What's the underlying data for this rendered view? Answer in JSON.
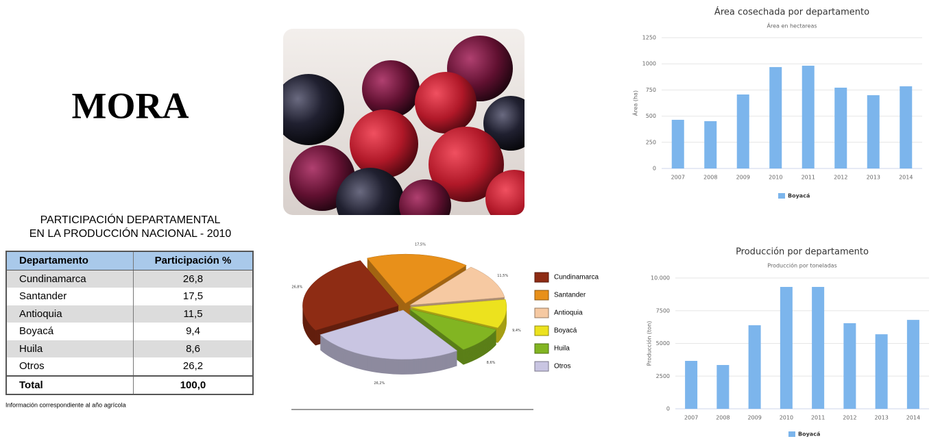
{
  "title": "MORA",
  "table": {
    "title_lines": [
      "PARTICIPACIÓN DEPARTAMENTAL",
      "EN LA PRODUCCIÓN NACIONAL - 2010"
    ],
    "header": [
      "Departamento",
      "Participación %"
    ],
    "rows": [
      [
        "Cundinamarca",
        "26,8"
      ],
      [
        "Santander",
        "17,5"
      ],
      [
        "Antioquia",
        "11,5"
      ],
      [
        "Boyacá",
        "9,4"
      ],
      [
        "Huila",
        "8,6"
      ],
      [
        "Otros",
        "26,2"
      ]
    ],
    "total": [
      "Total",
      "100,0"
    ],
    "footnote": "Información correspondiente al año agrícola"
  },
  "chart_data": [
    {
      "type": "pie",
      "categories": [
        "Cundinamarca",
        "Santander",
        "Antioquia",
        "Boyacá",
        "Huila",
        "Otros"
      ],
      "values": [
        26.8,
        17.5,
        11.5,
        9.4,
        8.6,
        26.2
      ],
      "value_labels": [
        "26,8%",
        "17,5%",
        "11,5%",
        "9,4%",
        "8,6%",
        "26,2%"
      ],
      "colors": [
        "#8e2c14",
        "#e8901a",
        "#f6c9a2",
        "#ece21e",
        "#82b522",
        "#c9c5e2"
      ],
      "legend": "right"
    },
    {
      "type": "bar",
      "title": "Área cosechada por departamento",
      "subtitle": "Área en hectareas",
      "y_label": "Área (ha)",
      "categories": [
        "2007",
        "2008",
        "2009",
        "2010",
        "2011",
        "2012",
        "2013",
        "2014"
      ],
      "series": [
        {
          "name": "Boyacá",
          "color": "#7cb5ec",
          "values": [
            465,
            452,
            707,
            969,
            982,
            772,
            700,
            785
          ]
        }
      ],
      "ylim": [
        0,
        1250
      ],
      "yticks": [
        0,
        250,
        500,
        750,
        1000,
        1250
      ],
      "grid": true,
      "legend": "bottom"
    },
    {
      "type": "bar",
      "title": "Producción por departamento",
      "subtitle": "Producción por toneladas",
      "y_label": "Producción (ton)",
      "categories": [
        "2007",
        "2008",
        "2009",
        "2010",
        "2011",
        "2012",
        "2013",
        "2014"
      ],
      "series": [
        {
          "name": "Boyacá",
          "color": "#7cb5ec",
          "values": [
            3665,
            3350,
            6390,
            9320,
            9320,
            6545,
            5700,
            6800
          ]
        }
      ],
      "ylim": [
        0,
        10000
      ],
      "yticks": [
        0,
        2500,
        5000,
        7500,
        {
          "value": 10000,
          "label": "10.000"
        }
      ],
      "grid": true,
      "legend": "bottom"
    }
  ]
}
